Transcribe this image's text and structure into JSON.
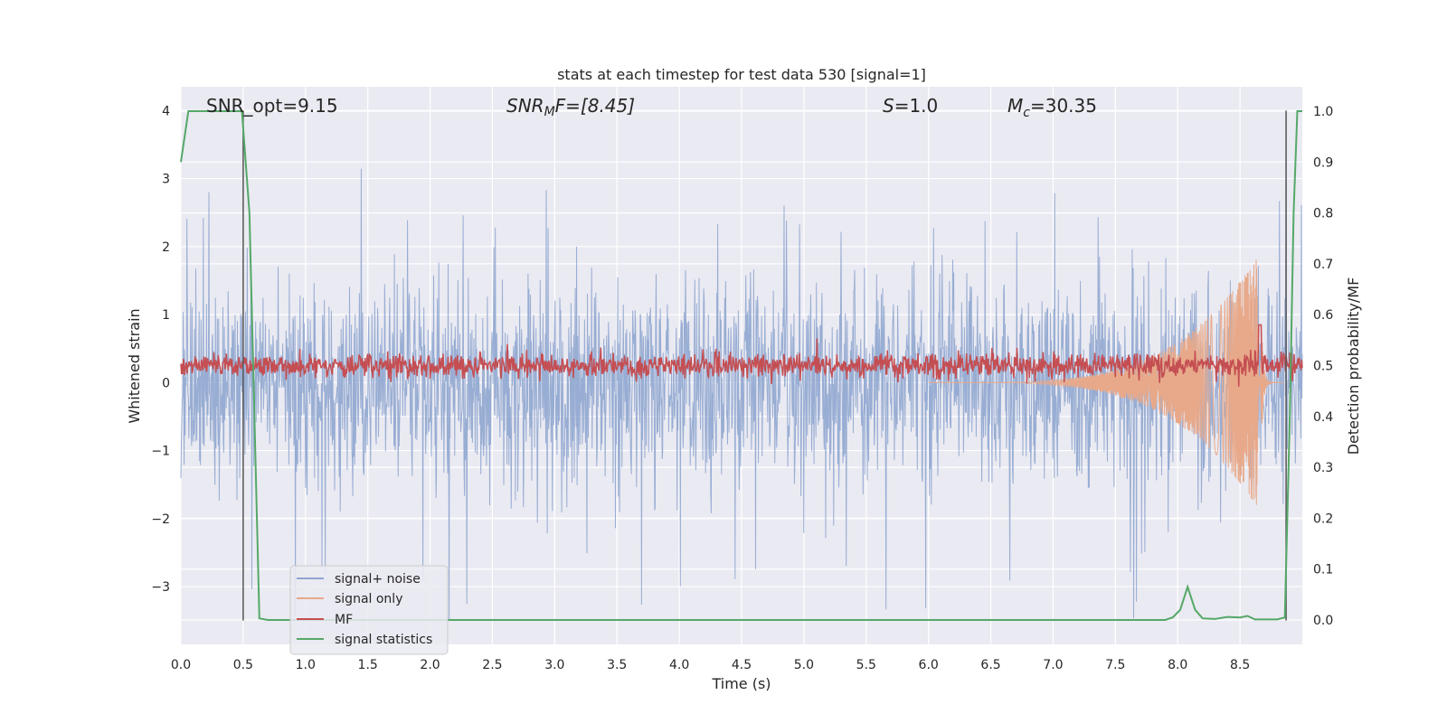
{
  "chart_data": {
    "type": "line",
    "title": "stats at each timestep for test data 530 [signal=1]",
    "xlabel": "Time (s)",
    "ylabel_left": "Whitened strain",
    "ylabel_right": "Detection probability/MF",
    "xlim": [
      0.0,
      9.0
    ],
    "ylim_left": [
      -3.85,
      4.35
    ],
    "ylim_right": [
      -0.048,
      1.048
    ],
    "x_ticks": [
      "0.0",
      "0.5",
      "1.0",
      "1.5",
      "2.0",
      "2.5",
      "3.0",
      "3.5",
      "4.0",
      "4.5",
      "5.0",
      "5.5",
      "6.0",
      "6.5",
      "7.0",
      "7.5",
      "8.0",
      "8.5"
    ],
    "y_ticks_left": [
      "4",
      "3",
      "2",
      "1",
      "0",
      "−1",
      "−2",
      "−3"
    ],
    "y_ticks_right": [
      "1.0",
      "0.9",
      "0.8",
      "0.7",
      "0.6",
      "0.5",
      "0.4",
      "0.3",
      "0.2",
      "0.1",
      "0.0"
    ],
    "grid": true,
    "legend_position": "lower-left",
    "annotations": {
      "snr_opt": "SNR_opt=9.15",
      "snr_mf_prefix": "SNR",
      "snr_mf_sub": "M",
      "snr_mf_suffix": "F=[8.45]",
      "s_label": "S",
      "s_value": "=1.0",
      "mc_label": "M",
      "mc_sub": "c",
      "mc_value": "=30.35"
    },
    "vertical_markers_x": [
      0.5,
      8.87
    ],
    "series": [
      {
        "name": "signal+ noise",
        "color": "#8fa6cf",
        "axis": "left",
        "description_level": "noise band approx ±1.2 with spikes to about ±3.5"
      },
      {
        "name": "signal only",
        "color": "#e8a98a",
        "axis": "left",
        "peak_x": 8.66,
        "peak_y": 1.9
      },
      {
        "name": "MF",
        "color": "#c44e52",
        "axis": "right",
        "level": 0.5
      },
      {
        "name": "signal statistics",
        "color": "#55a868",
        "axis": "right",
        "x": [
          0.0,
          0.06,
          0.12,
          0.2,
          0.3,
          0.4,
          0.49,
          0.55,
          0.6,
          0.63,
          0.7,
          1.0,
          2.0,
          3.0,
          4.0,
          5.0,
          6.0,
          7.0,
          7.9,
          7.96,
          8.02,
          8.08,
          8.14,
          8.2,
          8.3,
          8.4,
          8.5,
          8.56,
          8.62,
          8.7,
          8.8,
          8.86,
          8.9,
          8.93,
          8.96,
          9.0
        ],
        "y": [
          0.9,
          1.0,
          1.0,
          1.0,
          1.0,
          1.0,
          1.0,
          0.8,
          0.3,
          0.003,
          0.0,
          0.0,
          0.0,
          0.0,
          0.0,
          0.0,
          0.0,
          0.0,
          0.0,
          0.005,
          0.02,
          0.065,
          0.02,
          0.003,
          0.002,
          0.006,
          0.005,
          0.008,
          0.001,
          0.001,
          0.001,
          0.005,
          0.4,
          0.8,
          1.0,
          1.0
        ]
      }
    ]
  }
}
